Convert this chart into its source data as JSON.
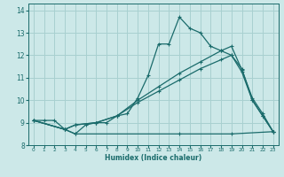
{
  "xlabel": "Humidex (Indice chaleur)",
  "xlim": [
    -0.5,
    23.5
  ],
  "ylim": [
    8.0,
    14.3
  ],
  "yticks": [
    8,
    9,
    10,
    11,
    12,
    13,
    14
  ],
  "xticks": [
    0,
    1,
    2,
    3,
    4,
    5,
    6,
    7,
    8,
    9,
    10,
    11,
    12,
    13,
    14,
    15,
    16,
    17,
    18,
    19,
    20,
    21,
    22,
    23
  ],
  "bg_color": "#cce8e8",
  "grid_color": "#a8d0d0",
  "line_color": "#1a6b6b",
  "lines": [
    {
      "x": [
        0,
        1,
        2,
        3,
        4,
        5,
        6,
        7,
        8,
        9,
        10,
        11,
        12,
        13,
        14,
        15,
        16,
        17,
        18,
        19,
        20,
        21,
        22,
        23
      ],
      "y": [
        9.1,
        9.1,
        9.1,
        8.7,
        8.5,
        8.9,
        9.0,
        9.0,
        9.3,
        9.4,
        10.1,
        11.1,
        12.5,
        12.5,
        13.7,
        13.2,
        13.0,
        12.4,
        12.2,
        12.0,
        11.4,
        10.0,
        9.3,
        8.6
      ]
    },
    {
      "x": [
        0,
        3,
        4,
        14,
        19,
        23
      ],
      "y": [
        9.1,
        8.7,
        8.5,
        8.5,
        8.5,
        8.6
      ]
    },
    {
      "x": [
        0,
        3,
        4,
        6,
        8,
        10,
        12,
        14,
        16,
        18,
        19,
        20,
        21,
        22,
        23
      ],
      "y": [
        9.1,
        8.7,
        8.9,
        9.0,
        9.3,
        10.0,
        10.6,
        11.2,
        11.7,
        12.2,
        12.4,
        11.35,
        10.1,
        9.4,
        8.6
      ]
    },
    {
      "x": [
        0,
        3,
        4,
        6,
        8,
        10,
        12,
        14,
        16,
        18,
        19,
        20,
        21,
        22,
        23
      ],
      "y": [
        9.1,
        8.7,
        8.9,
        9.0,
        9.3,
        9.9,
        10.4,
        10.9,
        11.4,
        11.8,
        12.0,
        11.25,
        10.0,
        9.3,
        8.6
      ]
    }
  ]
}
